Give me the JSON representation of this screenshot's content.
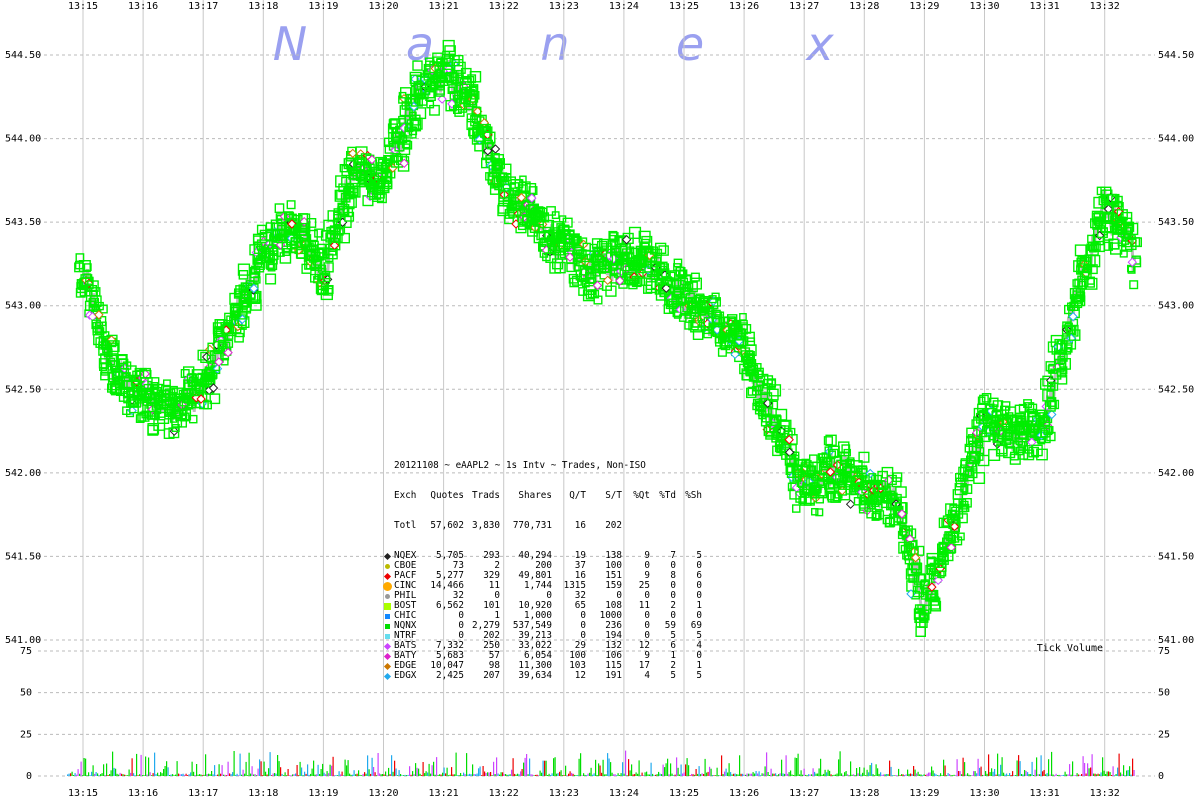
{
  "watermark": {
    "letters": [
      "N",
      "a",
      "n",
      "e",
      "x"
    ]
  },
  "chart_data": [
    {
      "type": "scatter",
      "title": "20121108 ~ eAAPL2 ~ 1s Intv ~ Trades, Non-ISO",
      "x_ticks": [
        "13:15",
        "13:16",
        "13:17",
        "13:18",
        "13:19",
        "13:20",
        "13:21",
        "13:22",
        "13:23",
        "13:24",
        "13:25",
        "13:26",
        "13:27",
        "13:28",
        "13:29",
        "13:30",
        "13:31",
        "13:32"
      ],
      "y_ticks": [
        "544.50",
        "544.00",
        "543.50",
        "543.00",
        "542.50",
        "542.00",
        "541.50",
        "541.00"
      ],
      "ylim": [
        541.0,
        544.5
      ],
      "grid": true,
      "series": [
        {
          "name": "NQNX",
          "color": "#00ee00",
          "x": [
            "13:15",
            "13:15:30",
            "13:16",
            "13:16:30",
            "13:17",
            "13:17:30",
            "13:18",
            "13:18:30",
            "13:19",
            "13:19:30",
            "13:20",
            "13:20:30",
            "13:21",
            "13:21:30",
            "13:22",
            "13:22:30",
            "13:23",
            "13:23:30",
            "13:24",
            "13:24:30",
            "13:25",
            "13:25:30",
            "13:26",
            "13:26:30",
            "13:27",
            "13:27:30",
            "13:28",
            "13:28:30",
            "13:29",
            "13:29:30",
            "13:30",
            "13:30:30",
            "13:31",
            "13:31:30",
            "13:32",
            "13:32:30"
          ],
          "y": [
            543.2,
            542.6,
            542.45,
            542.4,
            542.5,
            542.9,
            543.3,
            543.5,
            543.2,
            543.8,
            543.75,
            544.2,
            544.4,
            544.2,
            543.7,
            543.5,
            543.35,
            543.2,
            543.3,
            543.25,
            543.05,
            542.9,
            542.75,
            542.3,
            541.9,
            542.05,
            541.9,
            541.85,
            541.2,
            541.7,
            542.3,
            542.2,
            542.3,
            543.0,
            543.6,
            543.3
          ]
        }
      ]
    },
    {
      "type": "bar",
      "title": "Tick Volume",
      "y_ticks": [
        "75",
        "50",
        "25",
        "0"
      ],
      "ylim": [
        0,
        75
      ]
    }
  ],
  "stats_table": {
    "header1": "20121108 ~ eAAPL2 ~ 1s Intv ~ Trades, Non-ISO",
    "columns": [
      "Exch",
      "Quotes",
      "Trads",
      "Shares",
      "Q/T",
      "S/T",
      "%Qt",
      "%Td",
      "%Sh"
    ],
    "total": [
      "Totl",
      "57,602",
      "3,830",
      "770,731",
      "16",
      "202",
      "",
      "",
      ""
    ],
    "rows": [
      {
        "marker": "diamond",
        "color": "#222222",
        "cells": [
          "NQEX",
          "5,705",
          "293",
          "40,294",
          "19",
          "138",
          "9",
          "7",
          "5"
        ]
      },
      {
        "marker": "dot",
        "color": "#bbbb00",
        "cells": [
          "CBOE",
          "73",
          "2",
          "200",
          "37",
          "100",
          "0",
          "0",
          "0"
        ]
      },
      {
        "marker": "diamond",
        "color": "#ee0000",
        "cells": [
          "PACF",
          "5,277",
          "329",
          "49,801",
          "16",
          "151",
          "9",
          "8",
          "6"
        ]
      },
      {
        "marker": "dot-big",
        "color": "#ffaa00",
        "cells": [
          "CINC",
          "14,466",
          "11",
          "1,744",
          "1315",
          "159",
          "25",
          "0",
          "0"
        ]
      },
      {
        "marker": "dot",
        "color": "#999999",
        "cells": [
          "PHIL",
          "32",
          "0",
          "0",
          "32",
          "0",
          "0",
          "0",
          "0"
        ]
      },
      {
        "marker": "square",
        "color": "#aaff00",
        "cells": [
          "BOST",
          "6,562",
          "101",
          "10,920",
          "65",
          "108",
          "11",
          "2",
          "1"
        ]
      },
      {
        "marker": "square-sm",
        "color": "#1188ff",
        "cells": [
          "CHIC",
          "0",
          "1",
          "1,000",
          "0",
          "1000",
          "0",
          "0",
          "0"
        ]
      },
      {
        "marker": "square-sm",
        "color": "#00dd00",
        "cells": [
          "NQNX",
          "0",
          "2,279",
          "537,549",
          "0",
          "236",
          "0",
          "59",
          "69"
        ]
      },
      {
        "marker": "square-sm",
        "color": "#66ddee",
        "cells": [
          "NTRF",
          "0",
          "202",
          "39,213",
          "0",
          "194",
          "0",
          "5",
          "5"
        ]
      },
      {
        "marker": "diamond",
        "color": "#cc44ff",
        "cells": [
          "BATS",
          "7,332",
          "250",
          "33,022",
          "29",
          "132",
          "12",
          "6",
          "4"
        ]
      },
      {
        "marker": "diamond",
        "color": "#dd22cc",
        "cells": [
          "BATY",
          "5,683",
          "57",
          "6,054",
          "100",
          "106",
          "9",
          "1",
          "0"
        ]
      },
      {
        "marker": "diamond",
        "color": "#cc7700",
        "cells": [
          "EDGE",
          "10,047",
          "98",
          "11,300",
          "103",
          "115",
          "17",
          "2",
          "1"
        ]
      },
      {
        "marker": "diamond",
        "color": "#22aaee",
        "cells": [
          "EDGX",
          "2,425",
          "207",
          "39,634",
          "12",
          "191",
          "4",
          "5",
          "5"
        ]
      }
    ]
  },
  "colors": {
    "primary": "#00ee00",
    "grid": "#c8c8c8",
    "volume": "#00dd00",
    "watermark": "#9aa0f0"
  }
}
